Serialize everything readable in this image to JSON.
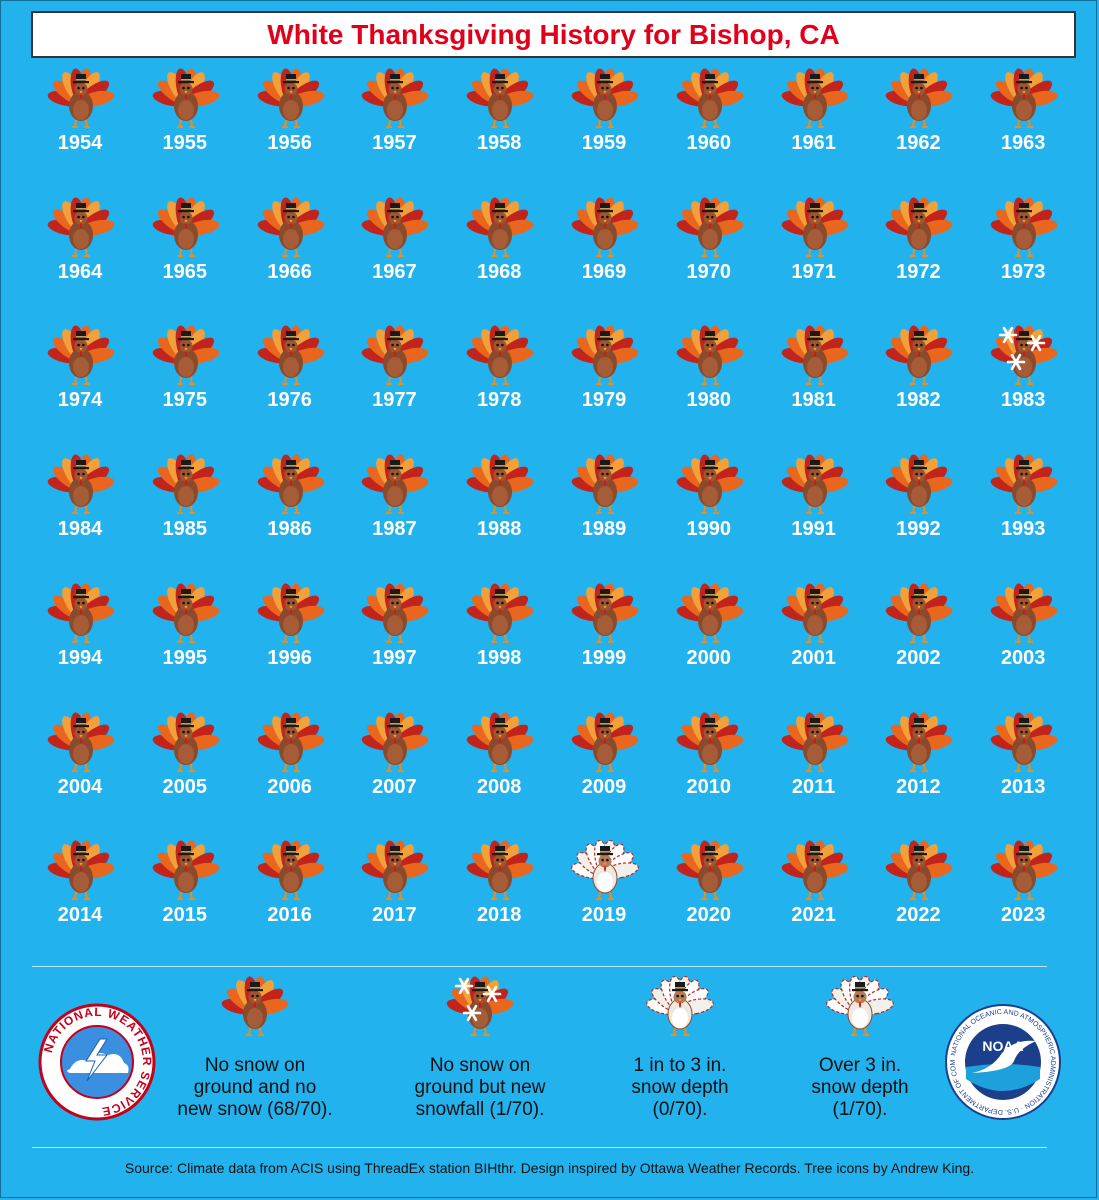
{
  "title": "White Thanksgiving History for Bishop, CA",
  "chart_data": {
    "type": "table",
    "categories": [
      "No snow on ground and no new snow",
      "No snow on ground but new snowfall",
      "1 in to 3 in. snow depth",
      "Over 3 in. snow depth"
    ],
    "counts": [
      68,
      1,
      0,
      1
    ],
    "total": 70,
    "years": [
      {
        "year": "1954",
        "category": "none"
      },
      {
        "year": "1955",
        "category": "none"
      },
      {
        "year": "1956",
        "category": "none"
      },
      {
        "year": "1957",
        "category": "none"
      },
      {
        "year": "1958",
        "category": "none"
      },
      {
        "year": "1959",
        "category": "none"
      },
      {
        "year": "1960",
        "category": "none"
      },
      {
        "year": "1961",
        "category": "none"
      },
      {
        "year": "1962",
        "category": "none"
      },
      {
        "year": "1963",
        "category": "none"
      },
      {
        "year": "1964",
        "category": "none"
      },
      {
        "year": "1965",
        "category": "none"
      },
      {
        "year": "1966",
        "category": "none"
      },
      {
        "year": "1967",
        "category": "none"
      },
      {
        "year": "1968",
        "category": "none"
      },
      {
        "year": "1969",
        "category": "none"
      },
      {
        "year": "1970",
        "category": "none"
      },
      {
        "year": "1971",
        "category": "none"
      },
      {
        "year": "1972",
        "category": "none"
      },
      {
        "year": "1973",
        "category": "none"
      },
      {
        "year": "1974",
        "category": "none"
      },
      {
        "year": "1975",
        "category": "none"
      },
      {
        "year": "1976",
        "category": "none"
      },
      {
        "year": "1977",
        "category": "none"
      },
      {
        "year": "1978",
        "category": "none"
      },
      {
        "year": "1979",
        "category": "none"
      },
      {
        "year": "1980",
        "category": "none"
      },
      {
        "year": "1981",
        "category": "none"
      },
      {
        "year": "1982",
        "category": "none"
      },
      {
        "year": "1983",
        "category": "snowfall"
      },
      {
        "year": "1984",
        "category": "none"
      },
      {
        "year": "1985",
        "category": "none"
      },
      {
        "year": "1986",
        "category": "none"
      },
      {
        "year": "1987",
        "category": "none"
      },
      {
        "year": "1988",
        "category": "none"
      },
      {
        "year": "1989",
        "category": "none"
      },
      {
        "year": "1990",
        "category": "none"
      },
      {
        "year": "1991",
        "category": "none"
      },
      {
        "year": "1992",
        "category": "none"
      },
      {
        "year": "1993",
        "category": "none"
      },
      {
        "year": "1994",
        "category": "none"
      },
      {
        "year": "1995",
        "category": "none"
      },
      {
        "year": "1996",
        "category": "none"
      },
      {
        "year": "1997",
        "category": "none"
      },
      {
        "year": "1998",
        "category": "none"
      },
      {
        "year": "1999",
        "category": "none"
      },
      {
        "year": "2000",
        "category": "none"
      },
      {
        "year": "2001",
        "category": "none"
      },
      {
        "year": "2002",
        "category": "none"
      },
      {
        "year": "2003",
        "category": "none"
      },
      {
        "year": "2004",
        "category": "none"
      },
      {
        "year": "2005",
        "category": "none"
      },
      {
        "year": "2006",
        "category": "none"
      },
      {
        "year": "2007",
        "category": "none"
      },
      {
        "year": "2008",
        "category": "none"
      },
      {
        "year": "2009",
        "category": "none"
      },
      {
        "year": "2010",
        "category": "none"
      },
      {
        "year": "2011",
        "category": "none"
      },
      {
        "year": "2012",
        "category": "none"
      },
      {
        "year": "2013",
        "category": "none"
      },
      {
        "year": "2014",
        "category": "none"
      },
      {
        "year": "2015",
        "category": "none"
      },
      {
        "year": "2016",
        "category": "none"
      },
      {
        "year": "2017",
        "category": "none"
      },
      {
        "year": "2018",
        "category": "none"
      },
      {
        "year": "2019",
        "category": "over3"
      },
      {
        "year": "2020",
        "category": "none"
      },
      {
        "year": "2021",
        "category": "none"
      },
      {
        "year": "2022",
        "category": "none"
      },
      {
        "year": "2023",
        "category": "none"
      }
    ]
  },
  "legend": [
    {
      "key": "none",
      "label": "No snow on\nground and no\nnew snow (68/70)."
    },
    {
      "key": "snowfall",
      "label": "No snow on\nground but new\nsnowfall (1/70)."
    },
    {
      "key": "depth1to3",
      "label": "1 in to 3 in.\nsnow depth\n(0/70)."
    },
    {
      "key": "over3",
      "label": "Over 3 in.\nsnow depth\n(1/70)."
    }
  ],
  "logos": {
    "nws": {
      "ring_text": "NATIONAL WEATHER SERVICE"
    },
    "noaa": {
      "center_text": "NOAA",
      "ring_text": "NATIONAL OCEANIC AND ATMOSPHERIC ADMINISTRATION · U.S. DEPARTMENT OF COMMERCE"
    }
  },
  "source": "Source: Climate data from ACIS using ThreadEx station BIHthr. Design inspired by Ottawa Weather Records. Tree icons by Andrew King.",
  "colors": {
    "background": "#22b2ee",
    "title": "#e0001a",
    "turkey_body": "#8b4a2b",
    "turkey_feathers": [
      "#c0241c",
      "#e8661e",
      "#f2a03a"
    ],
    "snow": "#ffffff"
  }
}
